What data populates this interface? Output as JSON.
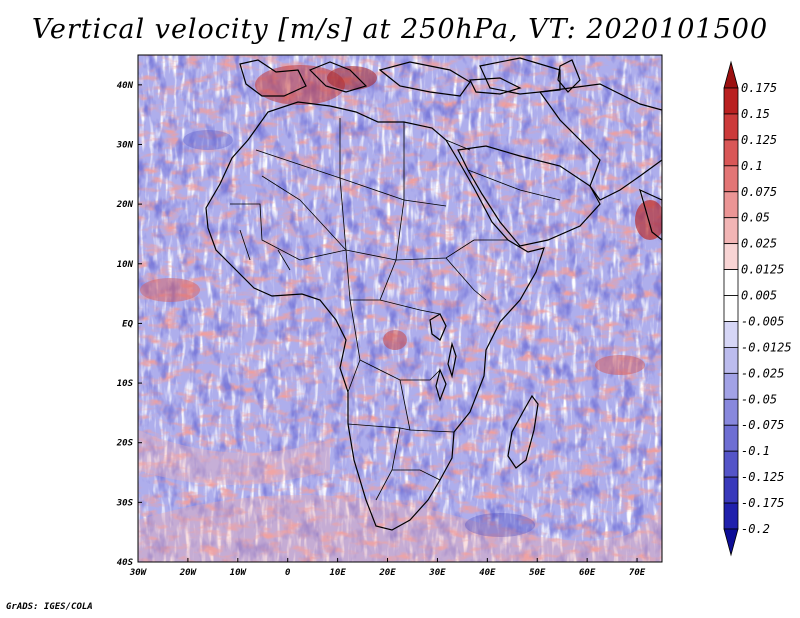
{
  "title": "Vertical velocity [m/s] at 250hPa, VT: 2020101500",
  "footer": "GrADS: IGES/COLA",
  "map": {
    "lon_range": [
      -30,
      75
    ],
    "lat_range": [
      -40,
      45
    ],
    "lon_ticks": [
      {
        "value": -30,
        "label": "30W"
      },
      {
        "value": -20,
        "label": "20W"
      },
      {
        "value": -10,
        "label": "10W"
      },
      {
        "value": 0,
        "label": "0"
      },
      {
        "value": 10,
        "label": "10E"
      },
      {
        "value": 20,
        "label": "20E"
      },
      {
        "value": 30,
        "label": "30E"
      },
      {
        "value": 40,
        "label": "40E"
      },
      {
        "value": 50,
        "label": "50E"
      },
      {
        "value": 60,
        "label": "60E"
      },
      {
        "value": 70,
        "label": "70E"
      }
    ],
    "lat_ticks": [
      {
        "value": 40,
        "label": "40N"
      },
      {
        "value": 30,
        "label": "30N"
      },
      {
        "value": 20,
        "label": "20N"
      },
      {
        "value": 10,
        "label": "10N"
      },
      {
        "value": 0,
        "label": "EQ"
      },
      {
        "value": -10,
        "label": "10S"
      },
      {
        "value": -20,
        "label": "20S"
      },
      {
        "value": -30,
        "label": "30S"
      },
      {
        "value": -40,
        "label": "40S"
      }
    ]
  },
  "colorbar": {
    "labels": [
      "0.175",
      "0.15",
      "0.125",
      "0.1",
      "0.075",
      "0.05",
      "0.025",
      "0.0125",
      "0.005",
      "-0.005",
      "-0.0125",
      "-0.025",
      "-0.05",
      "-0.075",
      "-0.1",
      "-0.125",
      "-0.175",
      "-0.2"
    ],
    "colors": [
      "#9b1010",
      "#b92020",
      "#cc3a3a",
      "#d95757",
      "#e37575",
      "#eb9595",
      "#f2b5b5",
      "#f8d4d4",
      "#ffffff",
      "#ffffff",
      "#d6d6f6",
      "#bcbcee",
      "#a2a2e6",
      "#8888dd",
      "#6e6ed3",
      "#5454c8",
      "#3939bb",
      "#2020ac",
      "#0d0d96"
    ]
  },
  "chart_data": {
    "type": "heatmap",
    "title": "Vertical velocity [m/s] at 250hPa, VT: 2020101500",
    "variable": "Vertical velocity",
    "units": "m/s",
    "level": "250hPa",
    "valid_time": "2020101500",
    "x_range": [
      -30,
      75
    ],
    "y_range": [
      -40,
      45
    ],
    "contour_levels": [
      -0.2,
      -0.175,
      -0.125,
      -0.1,
      -0.075,
      -0.05,
      -0.025,
      -0.0125,
      -0.005,
      0.005,
      0.0125,
      0.025,
      0.05,
      0.075,
      0.1,
      0.125,
      0.15,
      0.175
    ]
  }
}
